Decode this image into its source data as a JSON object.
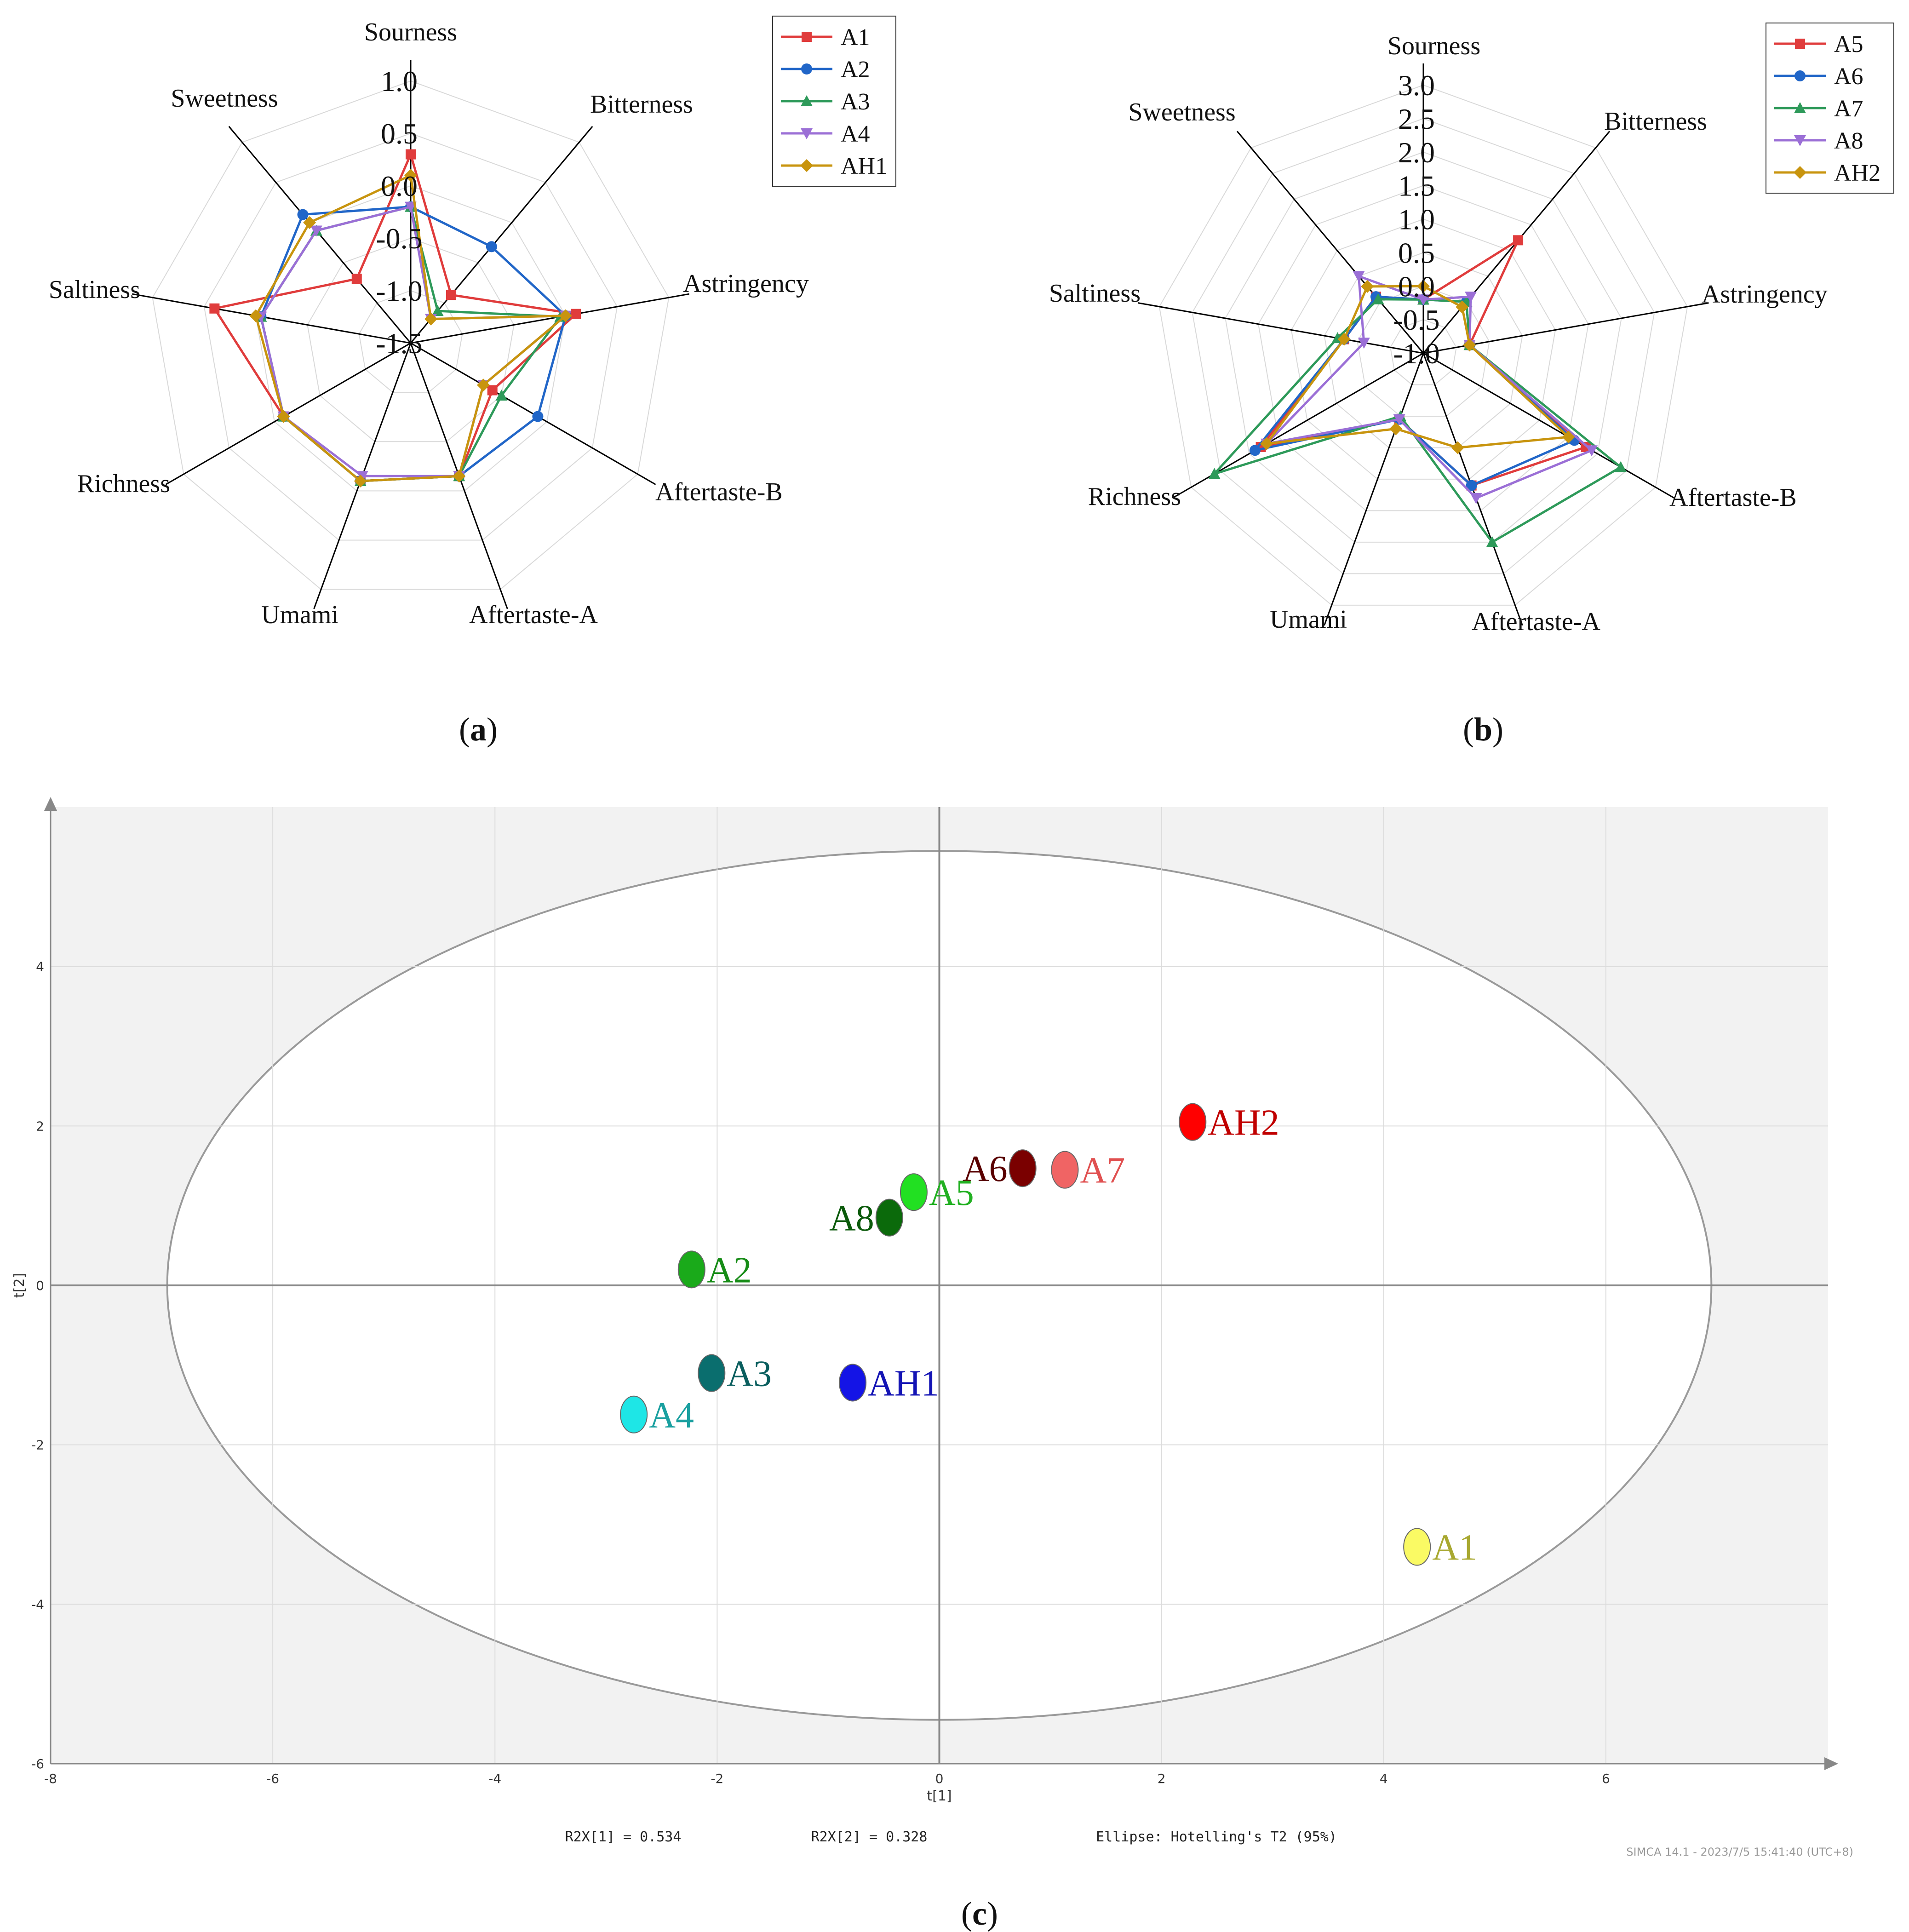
{
  "colors": {
    "s1": "#e03c3c",
    "s2": "#2166c8",
    "s3": "#2e9a5a",
    "s4": "#9b6fd6",
    "s5": "#c8940e",
    "grid": "#d9d9d9",
    "axis": "#000000"
  },
  "chart_data": [
    {
      "id": "a",
      "type": "radar",
      "panel_label": "a",
      "categories": [
        "Sourness",
        "Bitterness",
        "Astringency",
        "Aftertaste-B",
        "Aftertaste-A",
        "Umami",
        "Richness",
        "Saltiness",
        "Sweetness"
      ],
      "rlim": [
        -1.5,
        1.0
      ],
      "ticks": [
        1.0,
        0.5,
        0.0,
        -0.5,
        -1.0,
        -1.5
      ],
      "tick_labels": [
        "1.0",
        "0.5",
        "0.0",
        "-0.5",
        "-1.0",
        "-1.5"
      ],
      "series": [
        {
          "name": "A1",
          "marker": "square",
          "values": [
            0.3,
            -0.9,
            0.1,
            -0.6,
            -0.15,
            -0.1,
            -0.1,
            0.4,
            -0.7
          ]
        },
        {
          "name": "A2",
          "marker": "circle",
          "values": [
            -0.2,
            -0.3,
            0.0,
            -0.1,
            -0.15,
            -0.1,
            -0.1,
            -0.05,
            0.1
          ]
        },
        {
          "name": "A3",
          "marker": "triangle",
          "values": [
            -0.2,
            -1.1,
            -0.05,
            -0.5,
            -0.15,
            -0.1,
            -0.1,
            -0.05,
            -0.1
          ]
        },
        {
          "name": "A4",
          "marker": "tri-down",
          "values": [
            -0.2,
            -1.2,
            0.0,
            -0.7,
            -0.15,
            -0.15,
            -0.1,
            -0.05,
            -0.1
          ]
        },
        {
          "name": "AH1",
          "marker": "diamond",
          "values": [
            0.1,
            -1.2,
            0.0,
            -0.7,
            -0.15,
            -0.1,
            -0.1,
            0.0,
            0.0
          ]
        }
      ]
    },
    {
      "id": "b",
      "type": "radar",
      "panel_label": "b",
      "categories": [
        "Sourness",
        "Bitterness",
        "Astringency",
        "Aftertaste-B",
        "Aftertaste-A",
        "Umami",
        "Richness",
        "Saltiness",
        "Sweetness"
      ],
      "rlim": [
        -1.0,
        3.0
      ],
      "ticks": [
        3.0,
        2.5,
        2.0,
        1.5,
        1.0,
        0.5,
        0.0,
        -0.5,
        -1.0
      ],
      "tick_labels": [
        "3.0",
        "2.5",
        "2.0",
        "1.5",
        "1.0",
        "0.5",
        "0.0",
        "-0.5",
        "-1.0"
      ],
      "series": [
        {
          "name": "A5",
          "marker": "square",
          "values": [
            -0.2,
            1.2,
            -0.3,
            1.8,
            1.1,
            0.05,
            1.8,
            0.2,
            0.1
          ]
        },
        {
          "name": "A6",
          "marker": "circle",
          "values": [
            -0.2,
            0.0,
            -0.3,
            1.6,
            1.1,
            0.05,
            1.9,
            0.2,
            0.1
          ]
        },
        {
          "name": "A7",
          "marker": "triangle",
          "values": [
            -0.2,
            0.0,
            -0.3,
            2.4,
            2.0,
            0.0,
            2.6,
            0.3,
            0.05
          ]
        },
        {
          "name": "A8",
          "marker": "tri-down",
          "values": [
            -0.2,
            0.1,
            -0.3,
            1.9,
            1.3,
            0.05,
            1.7,
            -0.1,
            0.5
          ]
        },
        {
          "name": "AH2",
          "marker": "diamond",
          "values": [
            0.0,
            -0.1,
            -0.3,
            1.5,
            0.5,
            0.2,
            1.7,
            0.2,
            0.3
          ]
        }
      ]
    },
    {
      "id": "c",
      "type": "scatter",
      "panel_label": "c",
      "xlabel": "t[1]",
      "ylabel": "t[2]",
      "xlim": [
        -8,
        8
      ],
      "ylim": [
        -6,
        6
      ],
      "xticks": [
        -8,
        -6,
        -4,
        -2,
        0,
        2,
        4,
        6
      ],
      "xtick_labels": [
        "-8",
        "-6",
        "-4",
        "-2",
        "0",
        "2",
        "4",
        "6"
      ],
      "yticks": [
        -6,
        -4,
        -2,
        0,
        2,
        4
      ],
      "ytick_labels": [
        "-6",
        "-4",
        "-2",
        "0",
        "2",
        "4"
      ],
      "ellipse": {
        "a": 6.95,
        "b": 5.45
      },
      "footer": [
        "R2X[1] = 0.534",
        "R2X[2] = 0.328",
        "Ellipse: Hotelling's T2 (95%)"
      ],
      "stamp": "SIMCA 14.1 - 2023/7/5 15:41:40 (UTC+8)",
      "points": [
        {
          "name": "AH2",
          "x": 2.28,
          "y": 2.05,
          "color": "#ff0000",
          "label_color": "#c00000",
          "label_side": "right"
        },
        {
          "name": "A6",
          "x": 0.75,
          "y": 1.47,
          "color": "#7a0000",
          "label_color": "#5a0000",
          "label_side": "left"
        },
        {
          "name": "A7",
          "x": 1.13,
          "y": 1.45,
          "color": "#f06464",
          "label_color": "#e05050",
          "label_side": "right"
        },
        {
          "name": "A5",
          "x": -0.23,
          "y": 1.17,
          "color": "#22e022",
          "label_color": "#22b022",
          "label_side": "right"
        },
        {
          "name": "A8",
          "x": -0.45,
          "y": 0.85,
          "color": "#0b6a0b",
          "label_color": "#0b5a0b",
          "label_side": "left"
        },
        {
          "name": "A2",
          "x": -2.23,
          "y": 0.2,
          "color": "#1aaa1a",
          "label_color": "#178c17",
          "label_side": "right"
        },
        {
          "name": "A3",
          "x": -2.05,
          "y": -1.1,
          "color": "#0a6e6e",
          "label_color": "#0a5e5e",
          "label_side": "right"
        },
        {
          "name": "AH1",
          "x": -0.78,
          "y": -1.22,
          "color": "#1414e6",
          "label_color": "#1414b4",
          "label_side": "right"
        },
        {
          "name": "A4",
          "x": -2.75,
          "y": -1.62,
          "color": "#1ee6e6",
          "label_color": "#1aa0a0",
          "label_side": "right"
        },
        {
          "name": "A1",
          "x": 4.3,
          "y": -3.28,
          "color": "#fafa64",
          "label_color": "#a8a830",
          "label_side": "right"
        }
      ]
    }
  ]
}
